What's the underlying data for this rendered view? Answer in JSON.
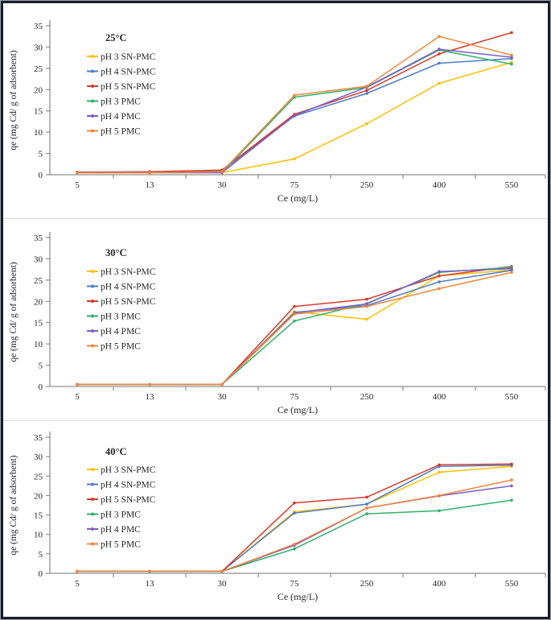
{
  "figure": {
    "frame_border_color": "#181d29",
    "frame_outline_color": "#9aa0a8",
    "separator_color": "#dcdcdc",
    "axis_color": "#8f8f8f",
    "text_color": "#262626"
  },
  "chart_data": [
    {
      "type": "line",
      "title": "25°C",
      "xlabel": "Ce (mg/L)",
      "ylabel": "qe (mg Cd/ g of adsorbent)",
      "categories": [
        "5",
        "13",
        "30",
        "75",
        "250",
        "400",
        "550"
      ],
      "ylim": [
        0,
        35
      ],
      "ytick_step": 5,
      "grid": false,
      "legend_position": "upper-left-inside",
      "series": [
        {
          "name": "pH 3 SN-PMC",
          "color": "#FFC000",
          "values": [
            0.5,
            0.5,
            0.5,
            3.7,
            12.0,
            21.5,
            26.4
          ]
        },
        {
          "name": "pH 4 SN-PMC",
          "color": "#4E7DC6",
          "values": [
            0.5,
            0.5,
            1.0,
            13.8,
            19.1,
            26.2,
            27.3
          ]
        },
        {
          "name": "pH 5 SN-PMC",
          "color": "#D63A2B",
          "values": [
            0.6,
            0.7,
            1.1,
            14.2,
            19.8,
            28.4,
            33.4
          ]
        },
        {
          "name": "pH 3 PMC",
          "color": "#2FB269",
          "values": [
            0.5,
            0.5,
            0.5,
            18.2,
            20.5,
            29.3,
            26.0
          ]
        },
        {
          "name": "pH 4 PMC",
          "color": "#7A5EC8",
          "values": [
            0.5,
            0.5,
            0.5,
            13.9,
            20.6,
            29.5,
            27.6
          ]
        },
        {
          "name": "pH 5 PMC",
          "color": "#F0863C",
          "values": [
            0.5,
            0.5,
            0.7,
            18.7,
            20.8,
            32.5,
            28.1
          ]
        }
      ]
    },
    {
      "type": "line",
      "title": "30°C",
      "xlabel": "Ce (mg/L)",
      "ylabel": "qe (mg Cd/ g of adsorbent)",
      "categories": [
        "5",
        "13",
        "30",
        "75",
        "250",
        "400",
        "550"
      ],
      "ylim": [
        0,
        35
      ],
      "ytick_step": 5,
      "grid": false,
      "legend_position": "upper-left-inside",
      "series": [
        {
          "name": "pH 3 SN-PMC",
          "color": "#FFC000",
          "values": [
            0.5,
            0.5,
            0.5,
            17.6,
            15.8,
            26.0,
            27.4
          ]
        },
        {
          "name": "pH 4 SN-PMC",
          "color": "#4E7DC6",
          "values": [
            0.5,
            0.5,
            0.5,
            17.4,
            19.0,
            24.6,
            27.3
          ]
        },
        {
          "name": "pH 5 SN-PMC",
          "color": "#D63A2B",
          "values": [
            0.5,
            0.5,
            0.5,
            18.8,
            20.5,
            26.0,
            28.2
          ]
        },
        {
          "name": "pH 3 PMC",
          "color": "#2FB269",
          "values": [
            0.5,
            0.5,
            0.5,
            15.4,
            19.5,
            26.8,
            28.0
          ]
        },
        {
          "name": "pH 4 PMC",
          "color": "#7A5EC8",
          "values": [
            0.5,
            0.5,
            0.5,
            17.3,
            19.4,
            27.0,
            27.7
          ]
        },
        {
          "name": "pH 5 PMC",
          "color": "#F0863C",
          "values": [
            0.5,
            0.5,
            0.5,
            17.0,
            18.8,
            23.0,
            26.8
          ]
        }
      ]
    },
    {
      "type": "line",
      "title": "40°C",
      "xlabel": "Ce (mg/L)",
      "ylabel": "qe (mg Cd/ g of adsorbent)",
      "categories": [
        "5",
        "13",
        "30",
        "75",
        "250",
        "400",
        "550"
      ],
      "ylim": [
        0,
        35
      ],
      "ytick_step": 5,
      "grid": false,
      "legend_position": "upper-left-inside",
      "series": [
        {
          "name": "pH 3 SN-PMC",
          "color": "#FFC000",
          "values": [
            0.5,
            0.5,
            0.5,
            15.8,
            17.8,
            26.0,
            27.5
          ]
        },
        {
          "name": "pH 4 SN-PMC",
          "color": "#4E7DC6",
          "values": [
            0.5,
            0.5,
            0.5,
            15.5,
            17.8,
            27.5,
            27.8
          ]
        },
        {
          "name": "pH 5 SN-PMC",
          "color": "#D63A2B",
          "values": [
            0.5,
            0.5,
            0.5,
            18.1,
            19.6,
            27.9,
            28.1
          ]
        },
        {
          "name": "pH 3 PMC",
          "color": "#2FB269",
          "values": [
            0.5,
            0.5,
            0.5,
            6.3,
            15.3,
            16.1,
            18.8
          ]
        },
        {
          "name": "pH 4 PMC",
          "color": "#7A5EC8",
          "values": [
            0.5,
            0.5,
            0.5,
            7.2,
            16.8,
            19.9,
            22.5
          ]
        },
        {
          "name": "pH 5 PMC",
          "color": "#F0863C",
          "values": [
            0.5,
            0.5,
            0.5,
            7.5,
            16.8,
            20.0,
            24.0
          ]
        }
      ]
    }
  ]
}
